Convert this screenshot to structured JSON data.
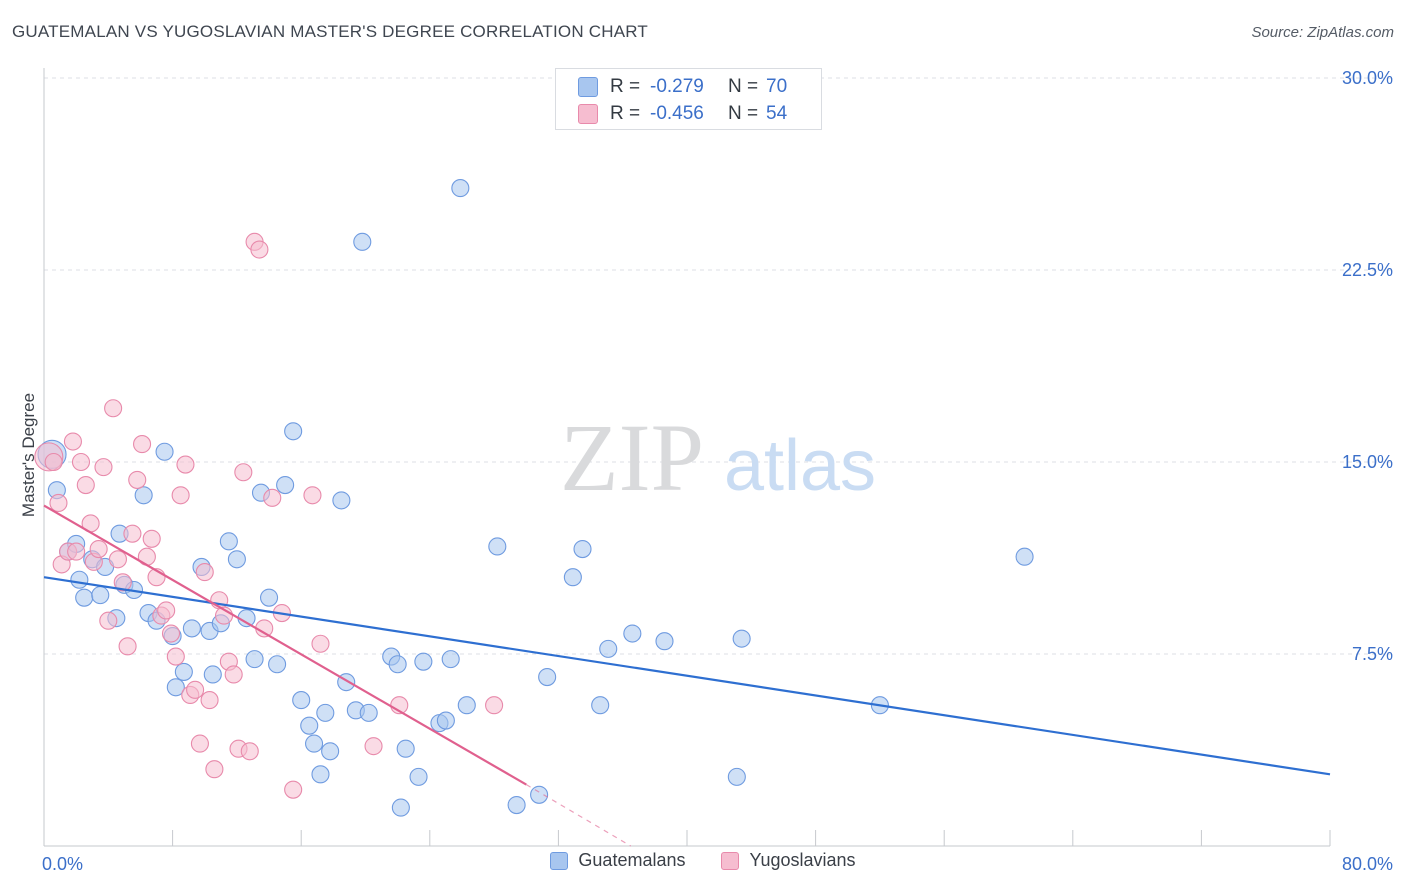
{
  "title": "GUATEMALAN VS YUGOSLAVIAN MASTER'S DEGREE CORRELATION CHART",
  "source": "Source: ZipAtlas.com",
  "watermark": {
    "zip": "ZIP",
    "atlas": "atlas"
  },
  "stats": [
    {
      "r_label": "R =",
      "r_value": "-0.279",
      "n_label": "N =",
      "n_value": "70",
      "color": "#a8c6ef",
      "border": "#6f9be0"
    },
    {
      "r_label": "R =",
      "r_value": "-0.456",
      "n_label": "N =",
      "n_value": "54",
      "color": "#f6bdd0",
      "border": "#e88aab"
    }
  ],
  "legend": [
    {
      "label": "Guatemalans",
      "color": "#a8c6ef",
      "border": "#6f9be0"
    },
    {
      "label": "Yugoslavians",
      "color": "#f6bdd0",
      "border": "#e88aab"
    }
  ],
  "chart_data": {
    "type": "scatter",
    "ylabel": "Master's Degree",
    "xlim": [
      0,
      80
    ],
    "ylim": [
      0,
      30
    ],
    "x_tick_labels": [
      "0.0%",
      "80.0%"
    ],
    "y_ticks": [
      7.5,
      15.0,
      22.5,
      30.0
    ],
    "y_tick_labels": [
      "7.5%",
      "15.0%",
      "22.5%",
      "30.0%"
    ],
    "grid": "horizontal-dashed",
    "series": [
      {
        "name": "Guatemalans",
        "color": "#a8c6ef",
        "stroke": "#6f9be0",
        "trend_color": "#2e6fd1",
        "trend": {
          "x0": 0,
          "y0": 10.5,
          "x1": 80,
          "y1": 2.8
        },
        "points": [
          [
            0.5,
            15.3
          ],
          [
            0.8,
            13.9
          ],
          [
            1.5,
            11.5
          ],
          [
            2,
            11.8
          ],
          [
            2.2,
            10.4
          ],
          [
            2.5,
            9.7
          ],
          [
            3,
            11.2
          ],
          [
            3.5,
            9.8
          ],
          [
            3.8,
            10.9
          ],
          [
            4.5,
            8.9
          ],
          [
            4.7,
            12.2
          ],
          [
            5,
            10.2
          ],
          [
            5.6,
            10
          ],
          [
            6.2,
            13.7
          ],
          [
            6.5,
            9.1
          ],
          [
            7,
            8.8
          ],
          [
            7.5,
            15.4
          ],
          [
            8,
            8.2
          ],
          [
            8.2,
            6.2
          ],
          [
            8.7,
            6.8
          ],
          [
            9.2,
            8.5
          ],
          [
            9.8,
            10.9
          ],
          [
            10.3,
            8.4
          ],
          [
            10.5,
            6.7
          ],
          [
            11,
            8.7
          ],
          [
            11.5,
            11.9
          ],
          [
            12,
            11.2
          ],
          [
            12.6,
            8.9
          ],
          [
            13.1,
            7.3
          ],
          [
            13.5,
            13.8
          ],
          [
            14,
            9.7
          ],
          [
            14.5,
            7.1
          ],
          [
            15,
            14.1
          ],
          [
            15.5,
            16.2
          ],
          [
            16,
            5.7
          ],
          [
            16.5,
            4.7
          ],
          [
            16.8,
            4
          ],
          [
            17.2,
            2.8
          ],
          [
            17.5,
            5.2
          ],
          [
            17.8,
            3.7
          ],
          [
            18.5,
            13.5
          ],
          [
            18.8,
            6.4
          ],
          [
            19.4,
            5.3
          ],
          [
            19.8,
            23.6
          ],
          [
            20.2,
            5.2
          ],
          [
            21.6,
            7.4
          ],
          [
            22,
            7.1
          ],
          [
            22.2,
            1.5
          ],
          [
            22.5,
            3.8
          ],
          [
            23.3,
            2.7
          ],
          [
            23.6,
            7.2
          ],
          [
            24.6,
            4.8
          ],
          [
            25,
            4.9
          ],
          [
            25.3,
            7.3
          ],
          [
            25.9,
            25.7
          ],
          [
            26.3,
            5.5
          ],
          [
            28.2,
            11.7
          ],
          [
            29.4,
            1.6
          ],
          [
            30.8,
            2
          ],
          [
            31.3,
            6.6
          ],
          [
            32.9,
            10.5
          ],
          [
            33.5,
            11.6
          ],
          [
            34.6,
            5.5
          ],
          [
            35.1,
            7.7
          ],
          [
            36.6,
            8.3
          ],
          [
            38.6,
            8
          ],
          [
            43.1,
            2.7
          ],
          [
            43.4,
            8.1
          ],
          [
            52,
            5.5
          ],
          [
            61,
            11.3
          ]
        ]
      },
      {
        "name": "Yugoslavians",
        "color": "#f6bdd0",
        "stroke": "#e88aab",
        "trend_color": "#e0608e",
        "trend": {
          "x0": 0,
          "y0": 13.3,
          "x1": 30,
          "y1": 2.4
        },
        "trend_ext": {
          "x0": 30,
          "y0": 2.4,
          "x1": 36.5,
          "y1": 0
        },
        "points": [
          [
            0.3,
            15.2
          ],
          [
            0.6,
            15
          ],
          [
            0.9,
            13.4
          ],
          [
            1.1,
            11
          ],
          [
            1.5,
            11.5
          ],
          [
            1.8,
            15.8
          ],
          [
            2,
            11.5
          ],
          [
            2.3,
            15
          ],
          [
            2.6,
            14.1
          ],
          [
            2.9,
            12.6
          ],
          [
            3.1,
            11.1
          ],
          [
            3.4,
            11.6
          ],
          [
            3.7,
            14.8
          ],
          [
            4,
            8.8
          ],
          [
            4.3,
            17.1
          ],
          [
            4.6,
            11.2
          ],
          [
            4.9,
            10.3
          ],
          [
            5.2,
            7.8
          ],
          [
            5.5,
            12.2
          ],
          [
            5.8,
            14.3
          ],
          [
            6.1,
            15.7
          ],
          [
            6.4,
            11.3
          ],
          [
            6.7,
            12
          ],
          [
            7,
            10.5
          ],
          [
            7.3,
            9
          ],
          [
            7.6,
            9.2
          ],
          [
            7.9,
            8.3
          ],
          [
            8.2,
            7.4
          ],
          [
            8.5,
            13.7
          ],
          [
            8.8,
            14.9
          ],
          [
            9.1,
            5.9
          ],
          [
            9.4,
            6.1
          ],
          [
            9.7,
            4
          ],
          [
            10,
            10.7
          ],
          [
            10.3,
            5.7
          ],
          [
            10.6,
            3
          ],
          [
            10.9,
            9.6
          ],
          [
            11.2,
            9
          ],
          [
            11.5,
            7.2
          ],
          [
            11.8,
            6.7
          ],
          [
            12.1,
            3.8
          ],
          [
            12.4,
            14.6
          ],
          [
            12.8,
            3.7
          ],
          [
            13.1,
            23.6
          ],
          [
            13.4,
            23.3
          ],
          [
            13.7,
            8.5
          ],
          [
            14.2,
            13.6
          ],
          [
            14.8,
            9.1
          ],
          [
            15.5,
            2.2
          ],
          [
            16.7,
            13.7
          ],
          [
            17.2,
            7.9
          ],
          [
            20.5,
            3.9
          ],
          [
            22.1,
            5.5
          ],
          [
            28,
            5.5
          ]
        ]
      }
    ]
  }
}
